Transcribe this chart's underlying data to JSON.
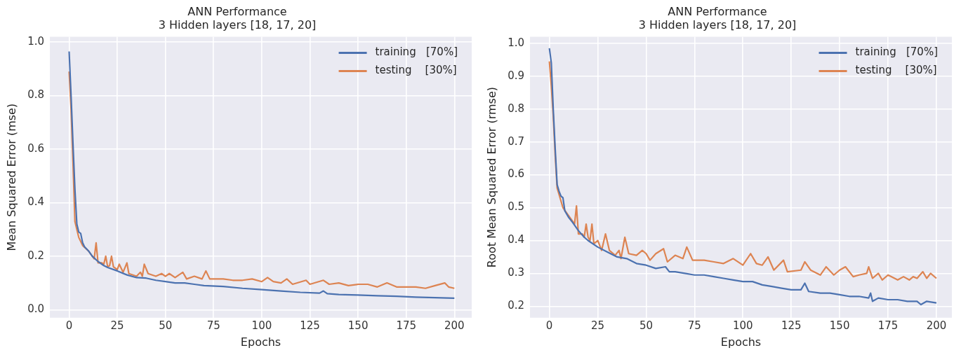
{
  "chart_data": [
    {
      "type": "line",
      "title": "ANN Performance",
      "subtitle": "3 Hidden layers [18, 17, 20]",
      "xlabel": "Epochs",
      "ylabel": "Mean Squared Error (mse)",
      "xlim": [
        -10,
        209
      ],
      "ylim": [
        -0.03,
        1.02
      ],
      "xticks": [
        0,
        25,
        50,
        75,
        100,
        125,
        150,
        175,
        200
      ],
      "yticks": [
        {
          "value": 0,
          "label": "0.0"
        },
        {
          "value": 0.2,
          "label": "0.2"
        },
        {
          "value": 0.4,
          "label": "0.4"
        },
        {
          "value": 0.6,
          "label": "0.6"
        },
        {
          "value": 0.8,
          "label": "0.8"
        },
        {
          "value": 1,
          "label": "1.0"
        }
      ],
      "grid": true,
      "legend": "top right",
      "marker": "none",
      "line_style": "solid",
      "series": [
        {
          "name": "training   [70%]",
          "color": "#4c72b0",
          "x": [
            0,
            1,
            2,
            3,
            4,
            5,
            6,
            7,
            8,
            10,
            12,
            15,
            18,
            20,
            25,
            30,
            35,
            40,
            45,
            50,
            55,
            60,
            65,
            70,
            80,
            90,
            100,
            110,
            120,
            130,
            132,
            134,
            140,
            150,
            160,
            170,
            180,
            190,
            200
          ],
          "values": [
            0.965,
            0.8,
            0.62,
            0.45,
            0.32,
            0.29,
            0.285,
            0.25,
            0.235,
            0.22,
            0.2,
            0.18,
            0.165,
            0.158,
            0.145,
            0.13,
            0.12,
            0.118,
            0.11,
            0.105,
            0.1,
            0.1,
            0.095,
            0.09,
            0.087,
            0.08,
            0.075,
            0.07,
            0.065,
            0.062,
            0.07,
            0.06,
            0.057,
            0.055,
            0.052,
            0.05,
            0.047,
            0.045,
            0.043
          ]
        },
        {
          "name": "testing    [30%]",
          "color": "#dd8452",
          "x": [
            0,
            1,
            2,
            3,
            4,
            5,
            7,
            10,
            12,
            13,
            14,
            15,
            17,
            18,
            19,
            20,
            21,
            22,
            23,
            25,
            26,
            28,
            30,
            31,
            35,
            37,
            38,
            39,
            41,
            45,
            48,
            50,
            52,
            55,
            59,
            61,
            65,
            69,
            71,
            73,
            80,
            85,
            90,
            95,
            100,
            103,
            106,
            110,
            113,
            116,
            123,
            125,
            132,
            135,
            140,
            145,
            150,
            155,
            160,
            165,
            170,
            175,
            180,
            185,
            190,
            195,
            197,
            200
          ],
          "values": [
            0.89,
            0.75,
            0.55,
            0.33,
            0.3,
            0.27,
            0.24,
            0.22,
            0.2,
            0.19,
            0.25,
            0.175,
            0.175,
            0.17,
            0.2,
            0.16,
            0.165,
            0.2,
            0.16,
            0.15,
            0.17,
            0.14,
            0.175,
            0.135,
            0.125,
            0.14,
            0.125,
            0.17,
            0.135,
            0.125,
            0.135,
            0.125,
            0.135,
            0.12,
            0.14,
            0.115,
            0.125,
            0.115,
            0.145,
            0.115,
            0.115,
            0.11,
            0.11,
            0.115,
            0.105,
            0.12,
            0.105,
            0.1,
            0.115,
            0.095,
            0.11,
            0.095,
            0.11,
            0.095,
            0.1,
            0.09,
            0.095,
            0.095,
            0.085,
            0.1,
            0.085,
            0.085,
            0.085,
            0.08,
            0.09,
            0.1,
            0.085,
            0.08
          ]
        }
      ]
    },
    {
      "type": "line",
      "title": "ANN Performance",
      "subtitle": "3 Hidden layers [18, 17, 20]",
      "xlabel": "Epochs",
      "ylabel": "Root Mean Squared Error (rmse)",
      "xlim": [
        -10,
        208
      ],
      "ylim": [
        0.165,
        1.02
      ],
      "xticks": [
        0,
        25,
        50,
        75,
        100,
        125,
        150,
        175,
        200
      ],
      "yticks": [
        {
          "value": 0.2,
          "label": "0.2"
        },
        {
          "value": 0.3,
          "label": "0.3"
        },
        {
          "value": 0.4,
          "label": "0.4"
        },
        {
          "value": 0.5,
          "label": "0.5"
        },
        {
          "value": 0.6,
          "label": "0.6"
        },
        {
          "value": 0.7,
          "label": "0.7"
        },
        {
          "value": 0.8,
          "label": "0.8"
        },
        {
          "value": 0.9,
          "label": "0.9"
        },
        {
          "value": 1,
          "label": "1.0"
        }
      ],
      "grid": true,
      "legend": "top right",
      "marker": "none",
      "line_style": "solid",
      "series": [
        {
          "name": "training   [70%]",
          "color": "#4c72b0",
          "x": [
            0,
            1,
            2,
            3,
            4,
            5,
            6,
            7,
            8,
            10,
            12,
            15,
            18,
            20,
            25,
            30,
            35,
            40,
            45,
            50,
            55,
            60,
            62,
            65,
            70,
            75,
            80,
            85,
            90,
            95,
            100,
            105,
            110,
            115,
            120,
            125,
            130,
            132,
            134,
            140,
            145,
            150,
            155,
            160,
            165,
            166,
            167,
            170,
            175,
            180,
            185,
            190,
            192,
            195,
            200
          ],
          "values": [
            0.985,
            0.94,
            0.8,
            0.68,
            0.57,
            0.55,
            0.535,
            0.53,
            0.49,
            0.47,
            0.455,
            0.43,
            0.41,
            0.4,
            0.38,
            0.365,
            0.35,
            0.345,
            0.33,
            0.325,
            0.315,
            0.32,
            0.305,
            0.305,
            0.3,
            0.295,
            0.295,
            0.29,
            0.285,
            0.28,
            0.275,
            0.275,
            0.265,
            0.26,
            0.255,
            0.25,
            0.25,
            0.27,
            0.245,
            0.24,
            0.24,
            0.235,
            0.23,
            0.23,
            0.225,
            0.24,
            0.215,
            0.225,
            0.22,
            0.22,
            0.215,
            0.215,
            0.205,
            0.215,
            0.21
          ]
        },
        {
          "name": "testing    [30%]",
          "color": "#dd8452",
          "x": [
            0,
            1,
            2,
            3,
            4,
            5,
            7,
            13,
            14,
            15,
            17,
            18,
            19,
            20,
            21,
            22,
            23,
            25,
            27,
            29,
            31,
            34,
            36,
            37,
            39,
            41,
            45,
            48,
            50,
            52,
            55,
            59,
            61,
            65,
            69,
            71,
            74,
            80,
            85,
            90,
            95,
            100,
            104,
            107,
            110,
            113,
            116,
            121,
            123,
            130,
            132,
            135,
            140,
            143,
            147,
            150,
            153,
            157,
            160,
            164,
            165,
            167,
            170,
            172,
            175,
            180,
            183,
            186,
            188,
            190,
            193,
            195,
            197,
            200
          ],
          "values": [
            0.945,
            0.87,
            0.78,
            0.66,
            0.56,
            0.54,
            0.5,
            0.45,
            0.505,
            0.42,
            0.42,
            0.41,
            0.45,
            0.41,
            0.4,
            0.45,
            0.39,
            0.4,
            0.37,
            0.42,
            0.37,
            0.355,
            0.37,
            0.345,
            0.41,
            0.36,
            0.355,
            0.37,
            0.36,
            0.34,
            0.36,
            0.375,
            0.335,
            0.355,
            0.345,
            0.38,
            0.34,
            0.34,
            0.335,
            0.33,
            0.345,
            0.325,
            0.36,
            0.33,
            0.325,
            0.35,
            0.31,
            0.34,
            0.305,
            0.31,
            0.335,
            0.31,
            0.295,
            0.32,
            0.295,
            0.31,
            0.32,
            0.29,
            0.295,
            0.3,
            0.32,
            0.285,
            0.3,
            0.28,
            0.295,
            0.28,
            0.29,
            0.28,
            0.29,
            0.285,
            0.305,
            0.285,
            0.3,
            0.285
          ]
        }
      ]
    }
  ]
}
